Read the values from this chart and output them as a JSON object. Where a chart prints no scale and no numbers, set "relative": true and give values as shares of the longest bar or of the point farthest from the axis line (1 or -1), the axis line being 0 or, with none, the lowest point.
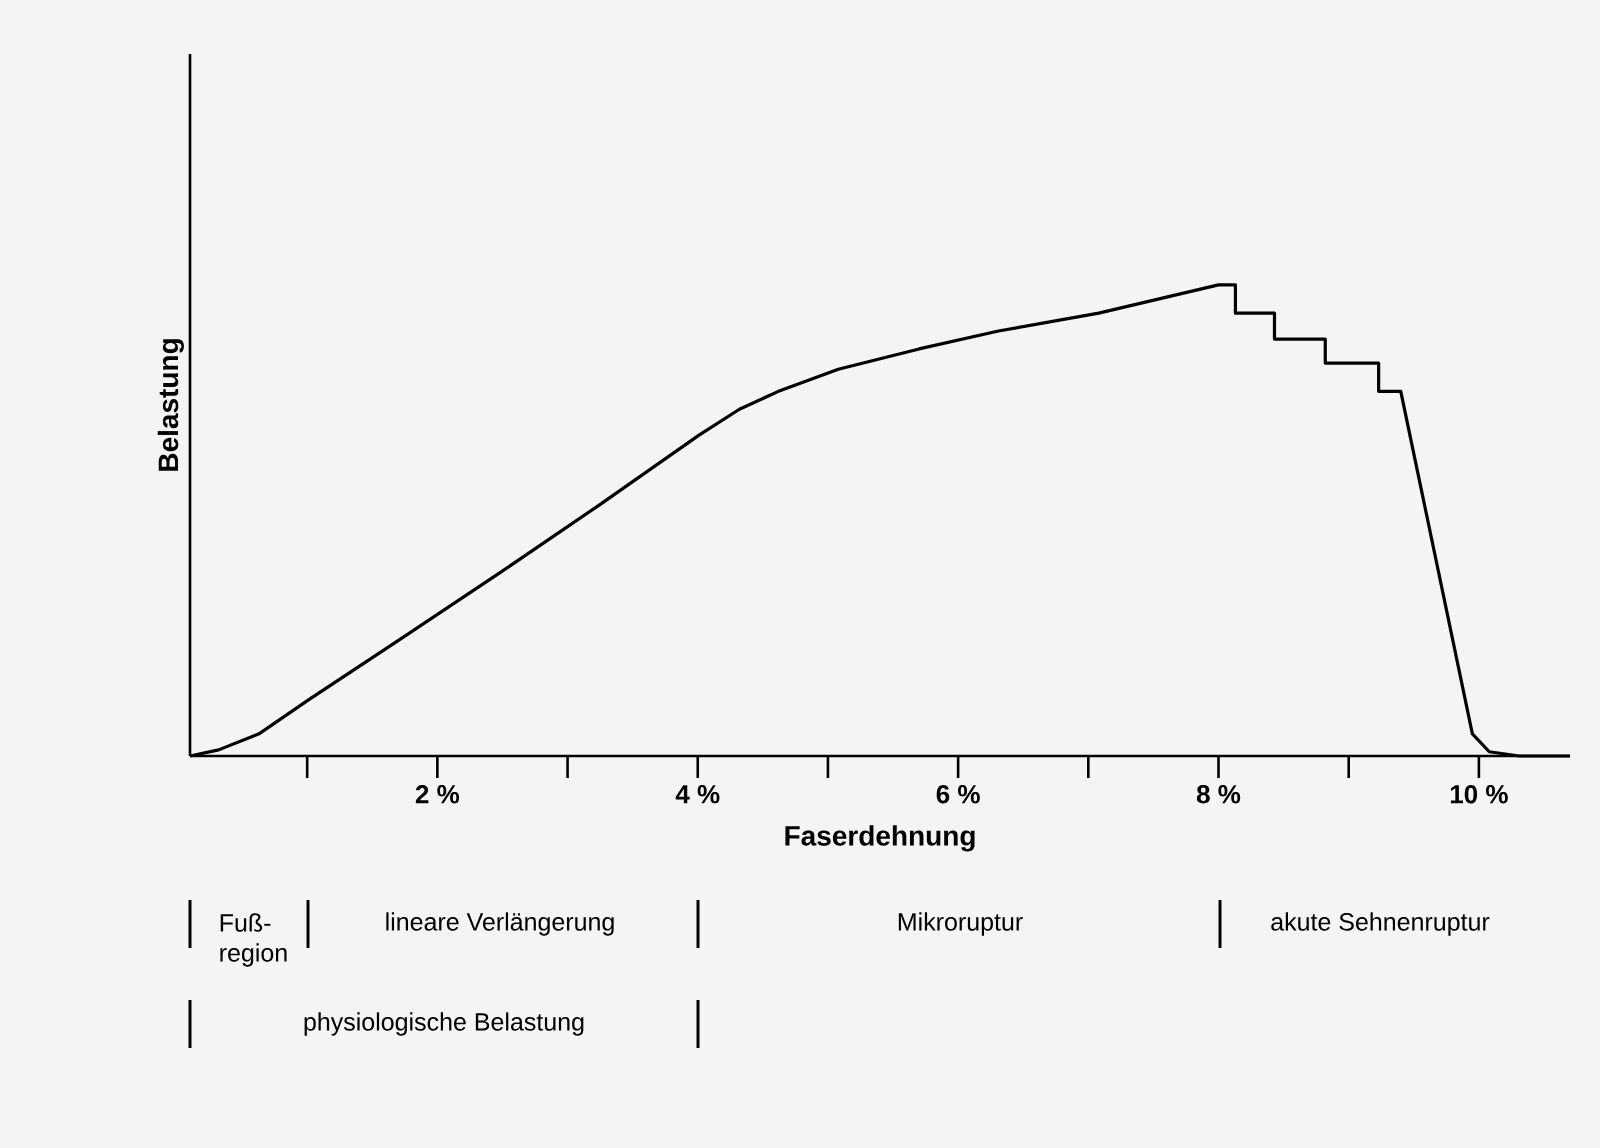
{
  "chart_data": {
    "type": "line",
    "relative": true,
    "xlabel": "Faserdehnung",
    "ylabel": "Belastung",
    "color": "#000000",
    "xlim": [
      0.1,
      10.7
    ],
    "xticks": [
      {
        "value": 1,
        "label": null
      },
      {
        "value": 2,
        "label": "2 %"
      },
      {
        "value": 3,
        "label": null
      },
      {
        "value": 4,
        "label": "4 %"
      },
      {
        "value": 5,
        "label": null
      },
      {
        "value": 6,
        "label": "6 %"
      },
      {
        "value": 7,
        "label": null
      },
      {
        "value": 8,
        "label": "8 %"
      },
      {
        "value": 9,
        "label": null
      },
      {
        "value": 10,
        "label": "10 %"
      }
    ],
    "x": [
      0.1,
      0.32,
      0.63,
      1.01,
      1.71,
      2.47,
      3.24,
      4.01,
      4.32,
      4.62,
      5.08,
      5.7,
      6.31,
      7.08,
      8.0,
      8.13,
      8.13,
      8.43,
      8.43,
      8.82,
      8.82,
      9.23,
      9.23,
      9.4,
      9.95,
      10.08,
      10.31,
      10.7
    ],
    "values": [
      0,
      0.013,
      0.047,
      0.119,
      0.247,
      0.387,
      0.532,
      0.681,
      0.736,
      0.774,
      0.821,
      0.864,
      0.902,
      0.94,
      1,
      1,
      0.94,
      0.94,
      0.885,
      0.885,
      0.834,
      0.834,
      0.774,
      0.774,
      0.047,
      0.009,
      0,
      0
    ],
    "annotations": [
      "Fuß-region",
      "lineare Verlängerung",
      "Mikroruptur",
      "akute Sehnenruptur",
      "physiologische Belastung"
    ]
  }
}
